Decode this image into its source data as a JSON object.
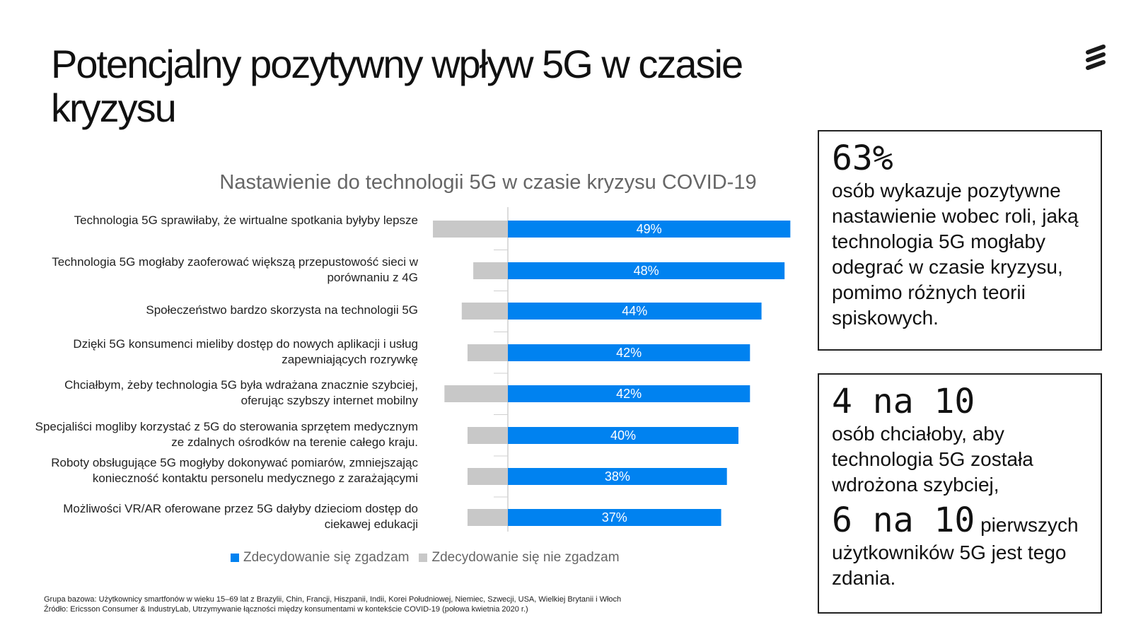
{
  "title": "Potencjalny pozytywny wpływ 5G w czasie kryzysu",
  "chart_data": {
    "type": "bar",
    "orientation": "horizontal-diverging",
    "title": "Nastawienie do technologii 5G w czasie kryzysu COVID-19",
    "categories": [
      "Technologia 5G sprawiłaby, że wirtualne spotkania byłyby lepsze",
      "Technologia 5G mogłaby zaoferować większą przepustowość sieci w porównaniu z 4G",
      "Społeczeństwo bardzo skorzysta na technologii 5G",
      "Dzięki 5G konsumenci mieliby dostęp do nowych aplikacji i usług zapewniających rozrywkę",
      "Chciałbym, żeby technologia 5G była wdrażana znacznie szybciej, oferując szybszy internet mobilny",
      "Specjaliści mogliby korzystać z 5G do sterowania sprzętem medycznym ze zdalnych ośrodków na terenie całego kraju.",
      "Roboty obsługujące 5G mogłyby dokonywać pomiarów, zmniejszając konieczność kontaktu personelu medycznego z zarażającymi",
      "Możliwości VR/AR oferowane przez 5G dałyby dzieciom dostęp do ciekawej edukacji"
    ],
    "series": [
      {
        "name": "Zdecydowanie się zgadzam",
        "color": "#0082f0",
        "values": [
          49,
          48,
          44,
          42,
          42,
          40,
          38,
          37
        ],
        "labels": [
          "49%",
          "48%",
          "44%",
          "42%",
          "42%",
          "40%",
          "38%",
          "37%"
        ]
      },
      {
        "name": "Zdecydowanie się nie zgadzam",
        "color": "#c8c8c8",
        "values": [
          13,
          6,
          8,
          7,
          11,
          7,
          7,
          7
        ]
      }
    ],
    "unit": "%",
    "grid": false,
    "legend": "bottom"
  },
  "stats": [
    {
      "big": "63%",
      "text": "osób wykazuje pozytywne nastawienie wobec roli, jaką technologia 5G mogłaby odegrać w czasie kryzysu, pomimo różnych teorii spiskowych."
    },
    {
      "big": "4 na 10",
      "text": "osób chciałoby, aby technologia 5G została wdrożona szybciej,",
      "big2": "6 na 10",
      "text2a": " pierwszych",
      "text2b": "użytkowników 5G jest tego zdania."
    }
  ],
  "footnotes": [
    "Grupa bazowa: Użytkownicy smartfonów w wieku 15–69 lat z Brazylii, Chin, Francji, Hiszpanii, Indii, Korei Południowej, Niemiec, Szwecji, USA, Wielkiej Brytanii i Włoch",
    "Źródło: Ericsson Consumer & IndustryLab, Utrzymywanie łączności między konsumentami w kontekście COVID-19 (połowa kwietnia 2020 r.)"
  ]
}
